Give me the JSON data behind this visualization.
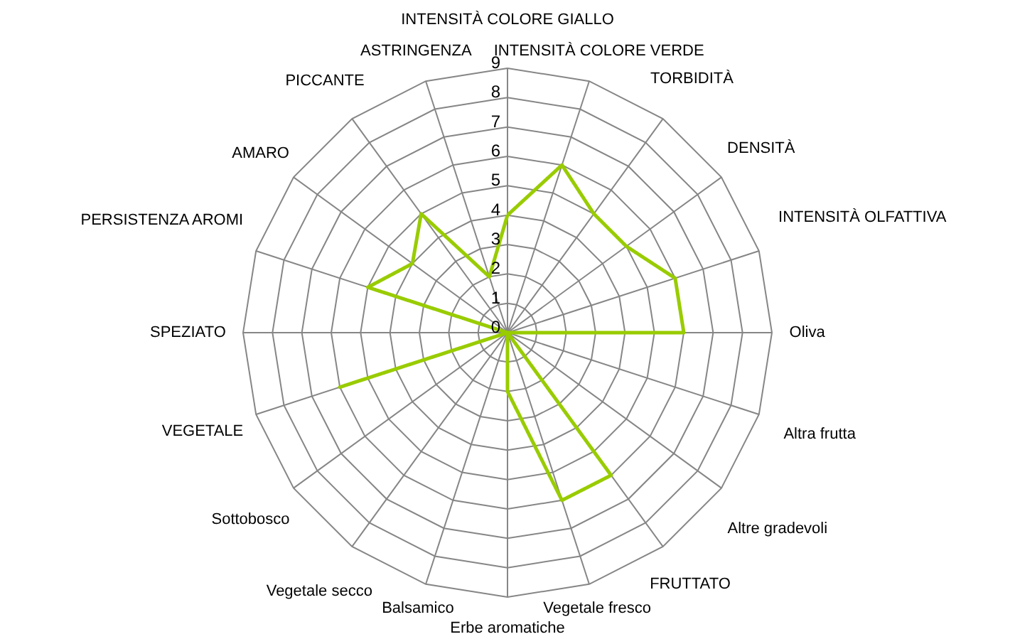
{
  "chart_data": {
    "type": "radar",
    "categories": [
      "INTENSITÀ COLORE GIALLO",
      "INTENSITÀ COLORE VERDE",
      "TORBIDITÀ",
      "DENSITÀ",
      "INTENSITÀ OLFATTIVA",
      "Oliva",
      "Altra frutta",
      "Altre gradevoli",
      "FRUTTATO",
      "Vegetale fresco",
      "Erbe aromatiche",
      "Balsamico",
      "Vegetale secco",
      "Sottobosco",
      "VEGETALE",
      "SPEZIATO",
      "PERSISTENZA AROMI",
      "AMARO",
      "PICCANTE",
      "ASTRINGENZA"
    ],
    "series": [
      {
        "color": "#99cc00",
        "values": [
          4,
          6,
          5,
          5,
          6,
          6,
          0,
          0,
          6,
          6,
          2,
          0,
          0,
          0,
          6,
          0,
          5,
          4,
          5,
          2
        ]
      }
    ],
    "ylim": [
      0,
      9
    ],
    "yticks": [
      0,
      1,
      2,
      3,
      4,
      5,
      6,
      7,
      8,
      9
    ],
    "grid": true,
    "marker": "none",
    "line_style": "solid"
  }
}
